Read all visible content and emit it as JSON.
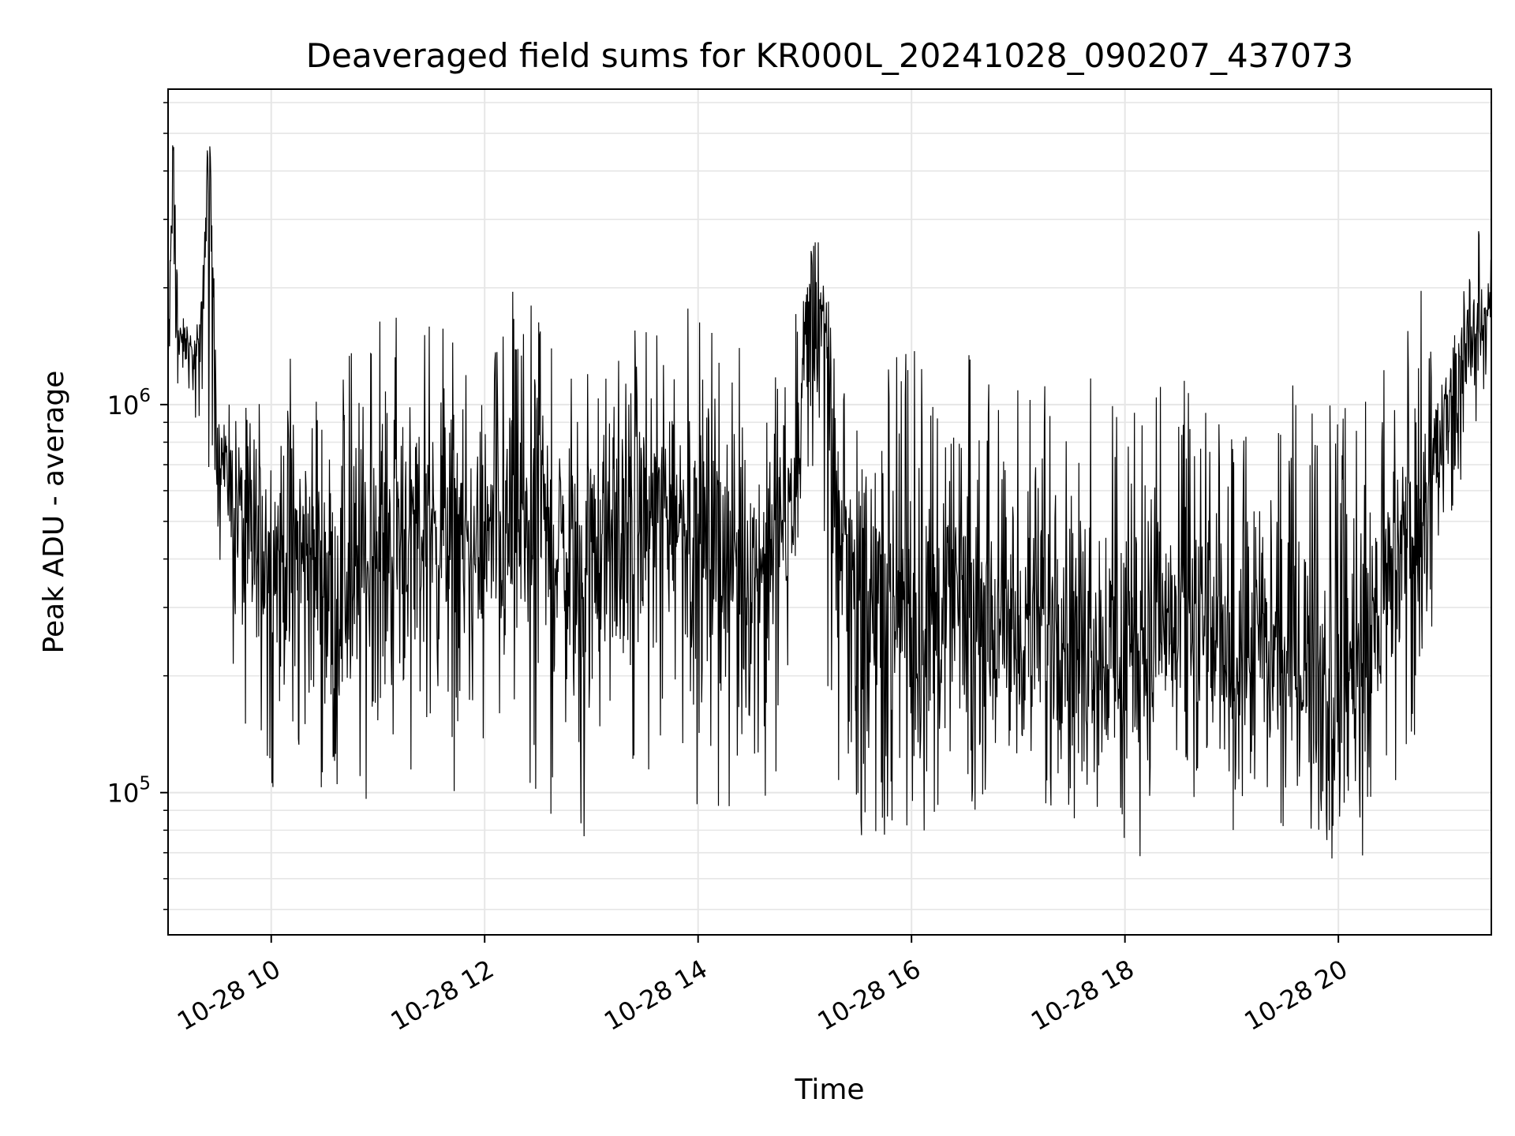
{
  "chart_data": {
    "type": "line",
    "title": "Deaveraged field sums for KR000L_20241028_090207_437073",
    "xlabel": "Time",
    "ylabel": "Peak ADU - average",
    "yscale": "log",
    "xlim": [
      "2024-10-28 09:02",
      "2024-10-28 21:26"
    ],
    "ylim": [
      43000,
      6500000
    ],
    "grid": true,
    "line_color": "#000000",
    "x_ticks": [
      {
        "value": "2024-10-28 10:00",
        "label": "10-28 10"
      },
      {
        "value": "2024-10-28 12:00",
        "label": "10-28 12"
      },
      {
        "value": "2024-10-28 14:00",
        "label": "10-28 14"
      },
      {
        "value": "2024-10-28 16:00",
        "label": "10-28 16"
      },
      {
        "value": "2024-10-28 18:00",
        "label": "10-28 18"
      },
      {
        "value": "2024-10-28 20:00",
        "label": "10-28 20"
      }
    ],
    "y_ticks": [
      {
        "value": 100000,
        "base": "10",
        "exponent": "5"
      },
      {
        "value": 1000000,
        "base": "10",
        "exponent": "6"
      }
    ],
    "series": [
      {
        "x": [
          "2024-10-28 09:02",
          "2024-10-28 09:05",
          "2024-10-28 09:08",
          "2024-10-28 09:12",
          "2024-10-28 09:16",
          "2024-10-28 09:20",
          "2024-10-28 09:25",
          "2024-10-28 09:30",
          "2024-10-28 09:35",
          "2024-10-28 09:40",
          "2024-10-28 09:45",
          "2024-10-28 09:50",
          "2024-10-28 10:00",
          "2024-10-28 10:15",
          "2024-10-28 10:30",
          "2024-10-28 10:45",
          "2024-10-28 11:00",
          "2024-10-28 11:15",
          "2024-10-28 11:30",
          "2024-10-28 11:45",
          "2024-10-28 12:00",
          "2024-10-28 12:15",
          "2024-10-28 12:30",
          "2024-10-28 12:45",
          "2024-10-28 13:00",
          "2024-10-28 13:15",
          "2024-10-28 13:30",
          "2024-10-28 13:45",
          "2024-10-28 14:00",
          "2024-10-28 14:15",
          "2024-10-28 14:30",
          "2024-10-28 14:45",
          "2024-10-28 14:55",
          "2024-10-28 15:00",
          "2024-10-28 15:05",
          "2024-10-28 15:10",
          "2024-10-28 15:15",
          "2024-10-28 15:20",
          "2024-10-28 15:30",
          "2024-10-28 15:45",
          "2024-10-28 16:00",
          "2024-10-28 16:15",
          "2024-10-28 16:30",
          "2024-10-28 16:45",
          "2024-10-28 17:00",
          "2024-10-28 17:15",
          "2024-10-28 17:30",
          "2024-10-28 17:45",
          "2024-10-28 18:00",
          "2024-10-28 18:15",
          "2024-10-28 18:30",
          "2024-10-28 18:45",
          "2024-10-28 19:00",
          "2024-10-28 19:15",
          "2024-10-28 19:30",
          "2024-10-28 19:45",
          "2024-10-28 20:00",
          "2024-10-28 20:15",
          "2024-10-28 20:30",
          "2024-10-28 20:45",
          "2024-10-28 21:00",
          "2024-10-28 21:10",
          "2024-10-28 21:20",
          "2024-10-28 21:26"
        ],
        "y": [
          1200000,
          4800000,
          1400000,
          1500000,
          1300000,
          1400000,
          5000000,
          800000,
          700000,
          600000,
          450000,
          500000,
          400000,
          450000,
          380000,
          330000,
          420000,
          480000,
          500000,
          430000,
          380000,
          520000,
          470000,
          420000,
          400000,
          450000,
          520000,
          560000,
          480000,
          430000,
          360000,
          440000,
          650000,
          1300000,
          2100000,
          1700000,
          950000,
          500000,
          380000,
          300000,
          280000,
          260000,
          300000,
          270000,
          250000,
          260000,
          280000,
          240000,
          230000,
          250000,
          260000,
          240000,
          230000,
          220000,
          210000,
          200000,
          190000,
          230000,
          380000,
          480000,
          1000000,
          1400000,
          1600000,
          1700000
        ],
        "lo": [
          700000,
          1000000,
          1000000,
          1000000,
          900000,
          800000,
          600000,
          400000,
          280000,
          150000,
          130000,
          120000,
          100000,
          95000,
          70000,
          90000,
          100000,
          110000,
          105000,
          100000,
          90000,
          95000,
          85000,
          80000,
          75000,
          95000,
          110000,
          120000,
          90000,
          80000,
          80000,
          90000,
          300000,
          650000,
          600000,
          350000,
          120000,
          85000,
          70000,
          75000,
          72000,
          80000,
          78000,
          90000,
          85000,
          90000,
          80000,
          85000,
          55000,
          80000,
          85000,
          75000,
          80000,
          75000,
          78000,
          72000,
          55000,
          68000,
          90000,
          150000,
          400000,
          600000,
          1000000,
          1300000
        ],
        "hi": [
          1600000,
          5800000,
          1800000,
          1800000,
          1700000,
          1800000,
          6000000,
          1100000,
          1000000,
          1300000,
          1400000,
          1400000,
          1300000,
          1450000,
          1300000,
          1500000,
          1700000,
          1800000,
          1650000,
          1600000,
          1000000,
          2900000,
          1650000,
          1400000,
          1300000,
          1500000,
          1650000,
          1800000,
          1950000,
          1700000,
          1400000,
          1600000,
          2200000,
          3300000,
          3200000,
          2500000,
          1900000,
          1100000,
          1150000,
          1300000,
          1450000,
          1200000,
          1400000,
          1300000,
          1250000,
          1450000,
          1350000,
          1200000,
          1000000,
          1250000,
          1300000,
          1150000,
          1100000,
          1350000,
          1200000,
          1100000,
          1100000,
          1200000,
          1250000,
          2100000,
          1200000,
          1900000,
          3400000,
          3300000
        ]
      }
    ]
  }
}
